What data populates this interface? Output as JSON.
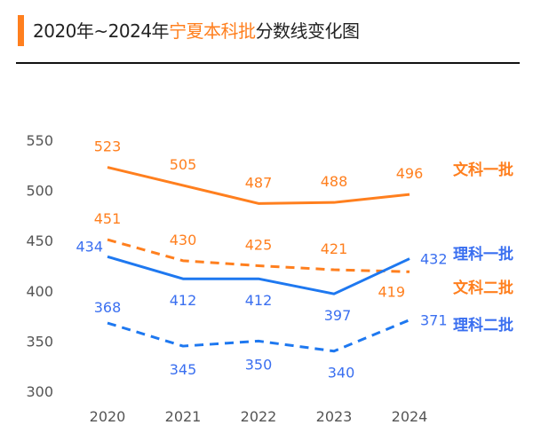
{
  "header": {
    "title_prefix": "2020年~2024年",
    "title_highlight": "宁夏本科批",
    "title_suffix": "分数线变化图"
  },
  "colors": {
    "orange": "#FF7F1E",
    "blue": "#1E78F0",
    "axis_text": "#555555"
  },
  "chart_data": {
    "type": "line",
    "title": "2020年~2024年宁夏本科批分数线变化图",
    "x": [
      "2020",
      "2021",
      "2022",
      "2023",
      "2024"
    ],
    "ylim": [
      300,
      550
    ],
    "yticks": [
      "300",
      "350",
      "400",
      "450",
      "500",
      "550"
    ],
    "grid": false,
    "legend": "right, inline at line ends",
    "series": [
      {
        "name": "文科一批",
        "values": [
          523,
          505,
          487,
          488,
          496
        ],
        "color": "#FF7F1E",
        "style": "solid"
      },
      {
        "name": "文科二批",
        "values": [
          451,
          430,
          425,
          421,
          419
        ],
        "color": "#FF7F1E",
        "style": "dashed"
      },
      {
        "name": "理科一批",
        "values": [
          434,
          412,
          412,
          397,
          432
        ],
        "color": "#1E78F0",
        "style": "solid"
      },
      {
        "name": "理科二批",
        "values": [
          368,
          345,
          350,
          340,
          371
        ],
        "color": "#1E78F0",
        "style": "dashed"
      }
    ]
  }
}
